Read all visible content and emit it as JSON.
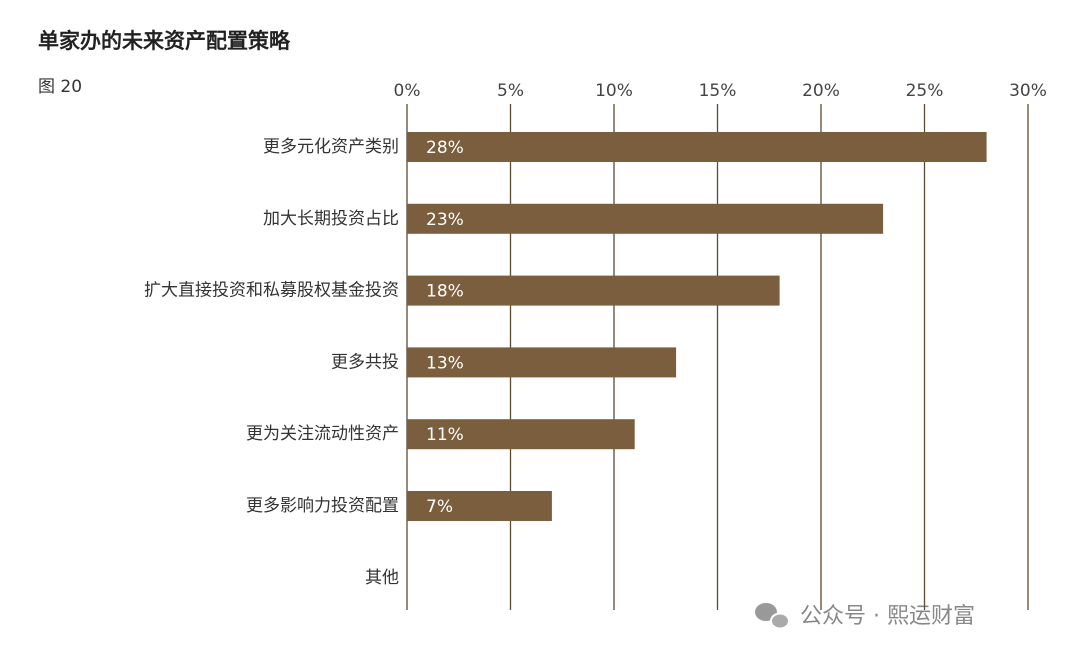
{
  "chart_data": {
    "type": "barh",
    "title": "单家办的未来资产配置策略",
    "figure_label": "图 20",
    "watermark": "公众号 · 熙运财富",
    "categories": [
      "更多元化资产类别",
      "加大长期投资占比",
      "扩大直接投资和私募股权基金投资",
      "更多共投",
      "更为关注流动性资产",
      "更多影响力投资配置",
      "其他"
    ],
    "values": [
      28,
      23,
      18,
      13,
      11,
      7,
      null
    ],
    "value_labels": [
      "28%",
      "23%",
      "18%",
      "13%",
      "11%",
      "7%",
      null
    ],
    "color": "#7b5e3d",
    "grid_color": "#5c4c33",
    "xlim": [
      0,
      30
    ],
    "xticks": [
      {
        "value": 0,
        "label": "0%"
      },
      {
        "value": 5,
        "label": "5%"
      },
      {
        "value": 10,
        "label": "10%"
      },
      {
        "value": 15,
        "label": "15%"
      },
      {
        "value": 20,
        "label": "20%"
      },
      {
        "value": 25,
        "label": "25%"
      },
      {
        "value": 30,
        "label": "30%"
      }
    ],
    "grid": true
  }
}
